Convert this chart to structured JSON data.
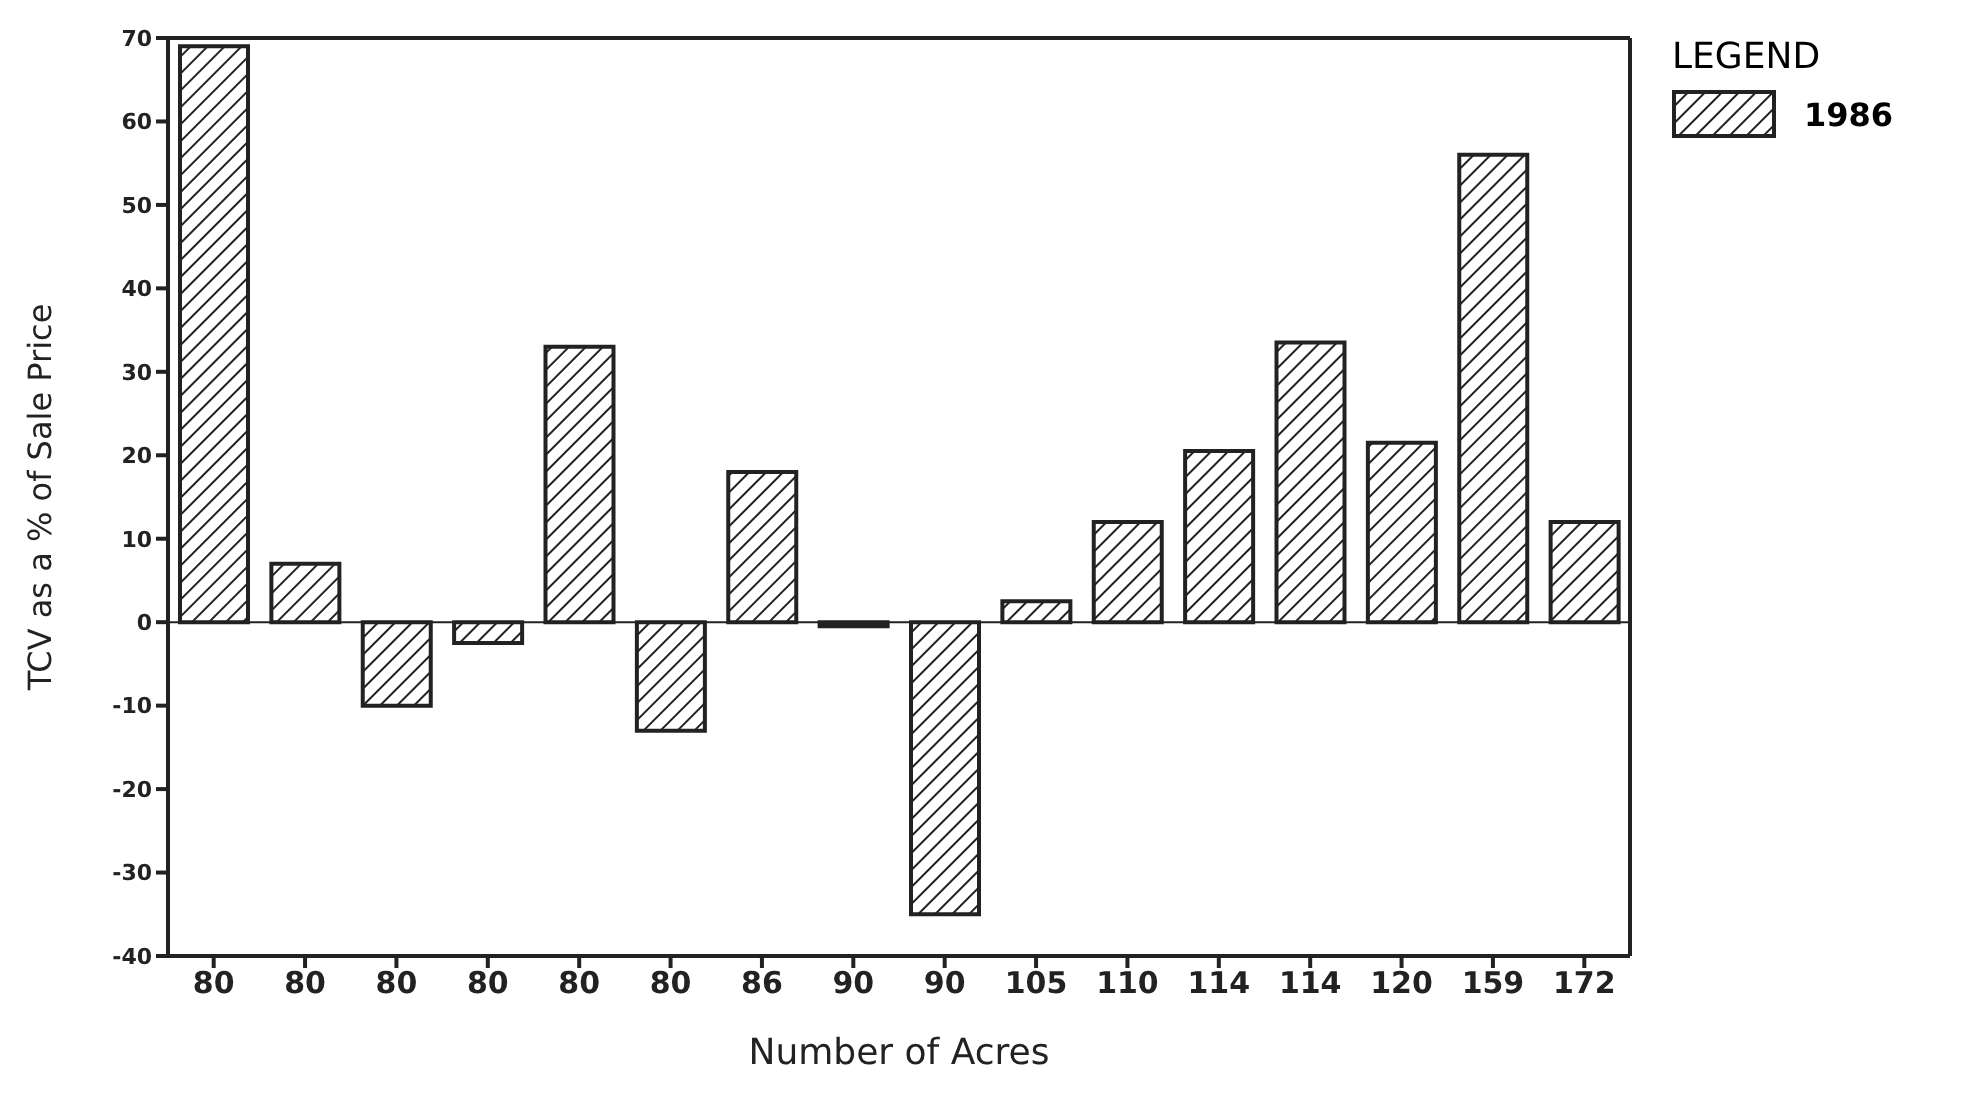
{
  "chart_data": {
    "type": "bar",
    "xlabel": "Number of Acres",
    "ylabel": "TCV as a % of Sale Price",
    "legend_title": "LEGEND",
    "categories": [
      "80",
      "80",
      "80",
      "80",
      "80",
      "80",
      "86",
      "90",
      "90",
      "105",
      "110",
      "114",
      "114",
      "120",
      "159",
      "172"
    ],
    "series": [
      {
        "name": "1986",
        "color": "#222222",
        "values": [
          69,
          7,
          -10,
          -2.5,
          33,
          -13,
          18,
          -0.5,
          -35,
          2.5,
          12,
          20.5,
          33.5,
          21.5,
          56,
          12
        ]
      }
    ],
    "ylim": [
      -40,
      70
    ],
    "yticks": [
      -40,
      -30,
      -20,
      -10,
      0,
      10,
      20,
      30,
      40,
      50,
      60,
      70
    ],
    "ref_lines": [
      {
        "axis": "y",
        "value": 0
      }
    ],
    "grid": false,
    "legend": "top right"
  }
}
